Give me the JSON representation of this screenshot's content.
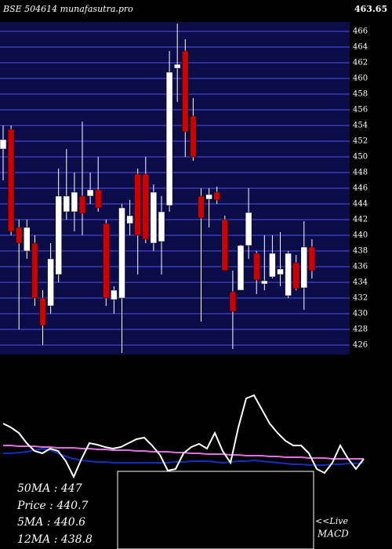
{
  "chart_data": [
    {
      "type": "candlestick",
      "title": "BSE 504614  munafasutra.pro",
      "top_label": "463.65",
      "open": [
        451,
        453.5,
        441,
        438,
        439,
        432,
        431,
        435,
        443,
        443,
        445,
        445,
        445.8,
        441.5,
        431.8,
        432,
        441.5,
        447.8,
        447.8,
        439,
        439.2,
        443.8,
        461.3,
        463.5,
        455.2,
        445,
        444.6,
        445.5,
        442,
        432.8,
        433,
        438.7,
        437.7,
        433.8,
        434.7,
        435,
        432.3,
        436.5,
        433.3,
        438.5
      ],
      "high": [
        454,
        454,
        442,
        442,
        440,
        433,
        439,
        448.5,
        451,
        448,
        454.5,
        448,
        450,
        442,
        433.5,
        444,
        444.5,
        448.5,
        450,
        446.5,
        445,
        463.5,
        467,
        465,
        457.5,
        446,
        446,
        446.2,
        442.5,
        435.5,
        438.8,
        446,
        438,
        440,
        440,
        440.4,
        438,
        437.5,
        441.8,
        439.5
      ],
      "low": [
        447,
        440,
        428,
        437,
        431,
        426,
        430,
        434,
        442,
        440.5,
        440,
        444,
        443,
        431,
        430,
        425,
        440,
        435,
        439,
        438,
        435,
        443,
        457,
        450,
        449.5,
        429,
        441,
        444,
        435.5,
        425.5,
        433,
        437,
        432.5,
        433,
        434.5,
        433.5,
        432,
        433,
        430.5,
        434.5
      ],
      "close": [
        452.2,
        440.5,
        439,
        441,
        432,
        428.5,
        437,
        445,
        445,
        445.5,
        442.8,
        445.8,
        443.5,
        432,
        433,
        443.5,
        442.5,
        440,
        439.5,
        445.5,
        443,
        460.8,
        461.8,
        453.2,
        450,
        442.2,
        445.2,
        444.5,
        435.5,
        430.3,
        438.7,
        442.9,
        434.3,
        434.2,
        437.7,
        435.7,
        437.7,
        433.2,
        438.5,
        435.5
      ],
      "up_color": "#ffffff",
      "down_color": "#cc0000",
      "ylim": [
        425,
        467
      ],
      "yticks": [
        426,
        428,
        430,
        432,
        434,
        436,
        438,
        440,
        442,
        444,
        446,
        448,
        450,
        452,
        454,
        456,
        458,
        460,
        462,
        464,
        466
      ],
      "grid": true
    },
    {
      "type": "line",
      "ylim": [
        0,
        130
      ],
      "series": [
        {
          "name": "50MA",
          "color": "#e070e0",
          "values": [
            52,
            52,
            51,
            51,
            51,
            50,
            50,
            49,
            49,
            49,
            48,
            48,
            47,
            47,
            46,
            46,
            46,
            45,
            45,
            44,
            44,
            44,
            43,
            43,
            42,
            42,
            41,
            41,
            41,
            40,
            40,
            39,
            39,
            39,
            38,
            38,
            37,
            37,
            37,
            36,
            36,
            36,
            35,
            35,
            35,
            35,
            35
          ]
        },
        {
          "name": "12MA",
          "color": "#1030c0",
          "values": [
            42,
            42,
            43,
            44,
            46,
            48,
            46,
            42,
            38,
            35,
            33,
            32,
            31,
            31,
            30,
            30,
            30,
            30,
            30,
            30,
            30,
            30,
            31,
            31,
            32,
            32,
            32,
            31,
            30,
            31,
            32,
            32,
            33,
            32,
            31,
            30,
            29,
            28,
            28,
            27,
            27,
            27,
            28,
            28,
            29,
            29,
            30
          ]
        },
        {
          "name": "Price",
          "color": "#ffffff",
          "values": [
            80,
            75,
            68,
            55,
            45,
            42,
            48,
            45,
            32,
            12,
            35,
            55,
            53,
            50,
            48,
            50,
            55,
            60,
            62,
            52,
            40,
            20,
            22,
            42,
            50,
            54,
            48,
            68,
            45,
            30,
            75,
            112,
            116,
            98,
            80,
            68,
            58,
            52,
            52,
            42,
            22,
            17,
            30,
            52,
            35,
            22,
            35
          ]
        }
      ],
      "texts": [
        "50MA : 447",
        "Price : 440.7",
        "5MA : 440.6",
        "12MA : 438.8"
      ],
      "inset_texts": [
        "<<Live",
        "MACD"
      ]
    }
  ]
}
